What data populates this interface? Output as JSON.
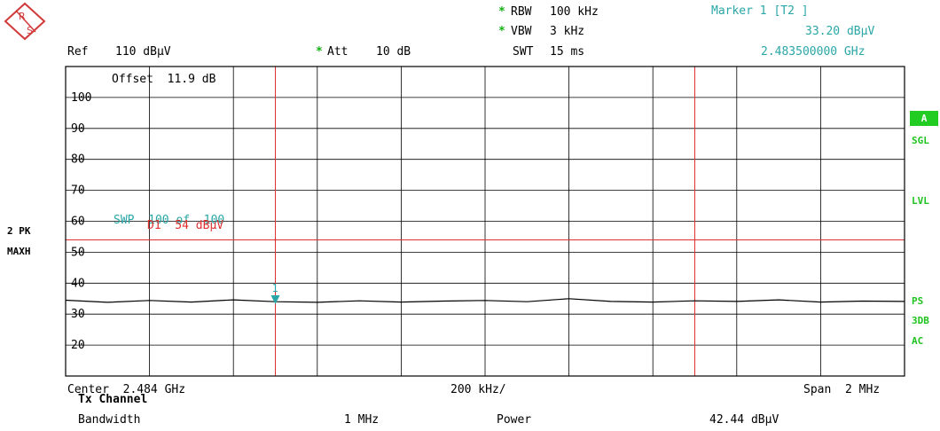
{
  "header": {
    "rbw_label": "RBW",
    "rbw_value": "100 kHz",
    "vbw_label": "VBW",
    "vbw_value": "3 kHz",
    "swt_label": "SWT",
    "swt_value": "15 ms",
    "ref_label": "Ref",
    "ref_value": "110 dBµV",
    "att_label": "Att",
    "att_value": "10 dB",
    "star": "*",
    "marker_title": "Marker 1 [T2 ]",
    "marker_level": "33.20 dBµV",
    "marker_freq": "2.483500000 GHz"
  },
  "left_panel": {
    "line1": "2 PK",
    "line2": "MAXH"
  },
  "right_panel": {
    "a": "A",
    "sgl": "SGL",
    "lvl": "LVL",
    "ps": "PS",
    "db3": "3DB",
    "ac": "AC"
  },
  "overlay": {
    "offset": "Offset  11.9 dB",
    "swp": "SWP  100 of  100",
    "d1": "D1  54 dBµV",
    "marker_num": "1"
  },
  "footer": {
    "center": "Center  2.484 GHz",
    "div": "200 kHz/",
    "span": "Span  2 MHz",
    "tx_title": "Tx Channel",
    "bw_label": "Bandwidth",
    "bw_value": "1 MHz",
    "power_label": "Power",
    "power_value": "42.44 dBµV"
  },
  "colors": {
    "trace": "#000000",
    "display_line": "#e03030",
    "marker": "#2aa6a6",
    "grid": "#000000"
  },
  "chart_data": {
    "type": "line",
    "x_unit": "GHz",
    "xlim": [
      2.483,
      2.485
    ],
    "ylim": [
      10,
      110
    ],
    "y_ticks": [
      20,
      30,
      40,
      50,
      60,
      70,
      80,
      90,
      100
    ],
    "grid": true,
    "display_line_d1": 54,
    "vertical_lines": [
      2.4835,
      2.4845
    ],
    "marker": {
      "x": 2.4835,
      "y": 33.2
    },
    "series": [
      {
        "x": [
          2.483,
          2.4831,
          2.4832,
          2.4833,
          2.4834,
          2.4835,
          2.4836,
          2.4837,
          2.4838,
          2.4839,
          2.484,
          2.4841,
          2.4842,
          2.4843,
          2.4844,
          2.4845,
          2.4846,
          2.4847,
          2.4848,
          2.4849,
          2.485
        ],
        "y": [
          34.5,
          33.8,
          34.4,
          33.9,
          34.6,
          34.0,
          33.8,
          34.3,
          33.9,
          34.2,
          34.4,
          34.0,
          35.0,
          34.1,
          33.9,
          34.3,
          34.1,
          34.6,
          33.9,
          34.2,
          34.1
        ]
      }
    ]
  }
}
